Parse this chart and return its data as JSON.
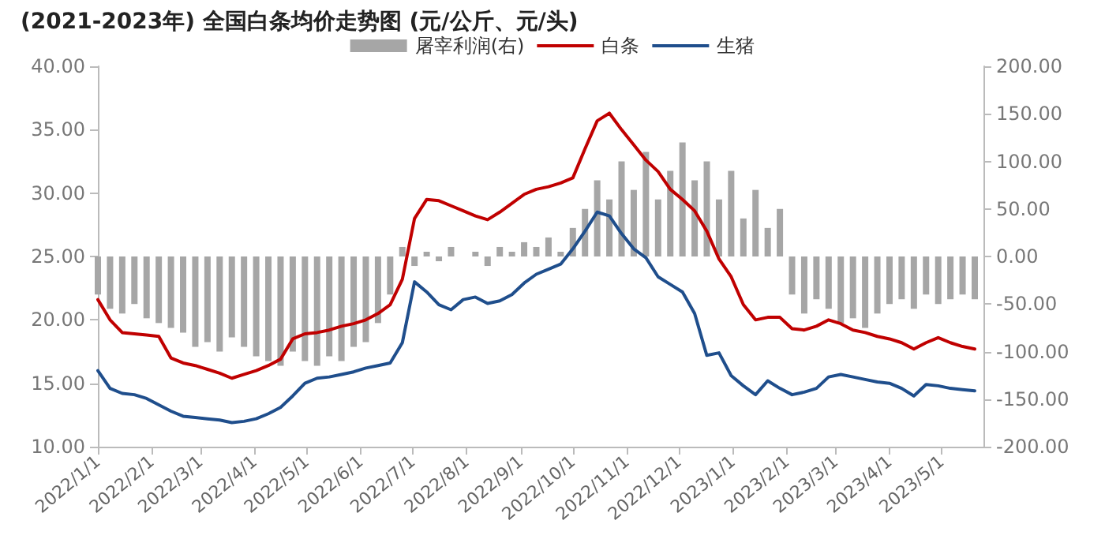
{
  "chart_data": {
    "type": "line",
    "title": "(2021-2023年) 全国白条均价走势图 (元/公斤、元/头)",
    "x": [
      "2022-01-01",
      "2022-01-08",
      "2022-01-15",
      "2022-01-22",
      "2022-01-29",
      "2022-02-05",
      "2022-02-12",
      "2022-02-19",
      "2022-02-26",
      "2022-03-05",
      "2022-03-12",
      "2022-03-19",
      "2022-03-26",
      "2022-04-02",
      "2022-04-09",
      "2022-04-16",
      "2022-04-23",
      "2022-04-30",
      "2022-05-07",
      "2022-05-14",
      "2022-05-21",
      "2022-05-28",
      "2022-06-04",
      "2022-06-11",
      "2022-06-18",
      "2022-06-25",
      "2022-07-02",
      "2022-07-09",
      "2022-07-16",
      "2022-07-23",
      "2022-07-30",
      "2022-08-06",
      "2022-08-13",
      "2022-08-20",
      "2022-08-27",
      "2022-09-03",
      "2022-09-10",
      "2022-09-17",
      "2022-09-24",
      "2022-10-01",
      "2022-10-08",
      "2022-10-15",
      "2022-10-22",
      "2022-10-29",
      "2022-11-05",
      "2022-11-12",
      "2022-11-19",
      "2022-11-26",
      "2022-12-03",
      "2022-12-10",
      "2022-12-17",
      "2022-12-24",
      "2022-12-31",
      "2023-01-07",
      "2023-01-14",
      "2023-01-21",
      "2023-01-28",
      "2023-02-04",
      "2023-02-11",
      "2023-02-18",
      "2023-02-25",
      "2023-03-04",
      "2023-03-11",
      "2023-03-18",
      "2023-03-25",
      "2023-04-01",
      "2023-04-08",
      "2023-04-15",
      "2023-04-22",
      "2023-04-29",
      "2023-05-06",
      "2023-05-13",
      "2023-05-20"
    ],
    "series": [
      {
        "name": "屠宰利润(右)",
        "type": "bar",
        "axis": "y2",
        "color": "#a6a6a6",
        "values": [
          -40,
          -55,
          -60,
          -50,
          -65,
          -70,
          -75,
          -80,
          -95,
          -90,
          -100,
          -85,
          -95,
          -105,
          -110,
          -115,
          -100,
          -110,
          -115,
          -105,
          -110,
          -95,
          -90,
          -70,
          -40,
          10,
          -10,
          5,
          -5,
          10,
          0,
          5,
          -10,
          10,
          5,
          15,
          10,
          20,
          5,
          30,
          50,
          80,
          60,
          100,
          70,
          110,
          60,
          90,
          120,
          80,
          100,
          60,
          90,
          40,
          70,
          30,
          50,
          -40,
          -60,
          -45,
          -55,
          -70,
          -65,
          -75,
          -60,
          -50,
          -45,
          -55,
          -40,
          -50,
          -45,
          -40,
          -45
        ]
      },
      {
        "name": "白条",
        "color": "#c00000",
        "values": [
          21.6,
          20.0,
          19.0,
          18.9,
          18.8,
          18.7,
          17.0,
          16.6,
          16.4,
          16.1,
          15.8,
          15.4,
          15.7,
          16.0,
          16.4,
          16.9,
          18.5,
          18.9,
          19.0,
          19.2,
          19.5,
          19.7,
          20.0,
          20.5,
          21.2,
          23.2,
          28.0,
          29.5,
          29.4,
          29.0,
          28.6,
          28.2,
          27.9,
          28.5,
          29.2,
          29.9,
          30.3,
          30.5,
          30.8,
          31.2,
          33.5,
          35.7,
          36.3,
          35.0,
          33.8,
          32.6,
          31.7,
          30.3,
          29.5,
          28.6,
          27.0,
          24.8,
          23.4,
          21.2,
          20.0,
          20.2,
          20.2,
          19.3,
          19.2,
          19.5,
          20.0,
          19.7,
          19.2,
          19.0,
          18.7,
          18.5,
          18.2,
          17.7,
          18.2,
          18.6,
          18.2,
          17.9,
          17.7
        ]
      },
      {
        "name": "生猪",
        "color": "#1f4e8c",
        "values": [
          16.0,
          14.6,
          14.2,
          14.1,
          13.8,
          13.3,
          12.8,
          12.4,
          12.3,
          12.2,
          12.1,
          11.9,
          12.0,
          12.2,
          12.6,
          13.1,
          14.0,
          15.0,
          15.4,
          15.5,
          15.7,
          15.9,
          16.2,
          16.4,
          16.6,
          18.2,
          23.0,
          22.2,
          21.2,
          20.8,
          21.6,
          21.8,
          21.3,
          21.5,
          22.0,
          22.9,
          23.6,
          24.0,
          24.4,
          25.6,
          27.0,
          28.5,
          28.2,
          26.8,
          25.6,
          24.9,
          23.4,
          22.8,
          22.2,
          20.5,
          17.2,
          17.4,
          15.6,
          14.8,
          14.1,
          15.2,
          14.6,
          14.1,
          14.3,
          14.6,
          15.5,
          15.7,
          15.5,
          15.3,
          15.1,
          15.0,
          14.6,
          14.0,
          14.9,
          14.8,
          14.6,
          14.5,
          14.4
        ]
      }
    ],
    "xlim": [
      "2022-01-01",
      "2023-05-25"
    ],
    "xticks": [
      {
        "value": "2022-01-01",
        "label": "2022/1/1"
      },
      {
        "value": "2022-02-01",
        "label": "2022/2/1"
      },
      {
        "value": "2022-03-01",
        "label": "2022/3/1"
      },
      {
        "value": "2022-04-01",
        "label": "2022/4/1"
      },
      {
        "value": "2022-05-01",
        "label": "2022/5/1"
      },
      {
        "value": "2022-06-01",
        "label": "2022/6/1"
      },
      {
        "value": "2022-07-01",
        "label": "2022/7/1"
      },
      {
        "value": "2022-08-01",
        "label": "2022/8/1"
      },
      {
        "value": "2022-09-01",
        "label": "2022/9/1"
      },
      {
        "value": "2022-10-01",
        "label": "2022/10/1"
      },
      {
        "value": "2022-11-01",
        "label": "2022/11/1"
      },
      {
        "value": "2022-12-01",
        "label": "2022/12/1"
      },
      {
        "value": "2023-01-01",
        "label": "2023/1/1"
      },
      {
        "value": "2023-02-01",
        "label": "2023/2/1"
      },
      {
        "value": "2023-03-01",
        "label": "2023/3/1"
      },
      {
        "value": "2023-04-01",
        "label": "2023/4/1"
      },
      {
        "value": "2023-05-01",
        "label": "2023/5/1"
      }
    ],
    "ylim": [
      10,
      40
    ],
    "yticks": [
      {
        "value": 10,
        "label": "10.00"
      },
      {
        "value": 15,
        "label": "15.00"
      },
      {
        "value": 20,
        "label": "20.00"
      },
      {
        "value": 25,
        "label": "25.00"
      },
      {
        "value": 30,
        "label": "30.00"
      },
      {
        "value": 35,
        "label": "35.00"
      },
      {
        "value": 40,
        "label": "40.00"
      }
    ],
    "y2lim": [
      -200,
      200
    ],
    "y2ticks": [
      {
        "value": -200,
        "label": "-200.00"
      },
      {
        "value": -150,
        "label": "-150.00"
      },
      {
        "value": -100,
        "label": "-100.00"
      },
      {
        "value": -50,
        "label": "-50.00"
      },
      {
        "value": 0,
        "label": "0.00"
      },
      {
        "value": 50,
        "label": "50.00"
      },
      {
        "value": 100,
        "label": "100.00"
      },
      {
        "value": 150,
        "label": "150.00"
      },
      {
        "value": 200,
        "label": "200.00"
      }
    ],
    "legend": "top",
    "grid": false,
    "marker": "none",
    "line_style": "solid"
  }
}
